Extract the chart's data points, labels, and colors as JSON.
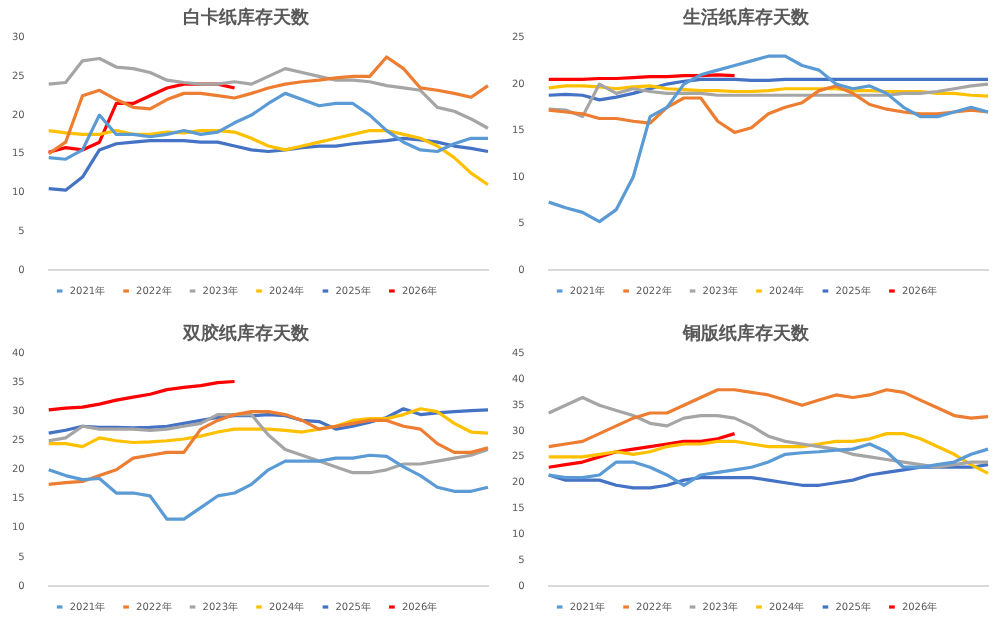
{
  "chart_data": [
    {
      "type": "line",
      "title": "白卡纸库存天数",
      "categories": [
        null,
        null,
        null,
        null,
        null,
        null,
        null,
        null,
        null,
        null,
        null,
        null,
        null,
        null,
        null,
        null,
        null,
        null,
        null,
        null,
        null,
        null,
        null,
        null,
        null,
        null,
        null
      ],
      "ylim": [
        0,
        30
      ],
      "yticks": [
        0,
        5,
        10,
        15,
        20,
        25,
        30
      ],
      "grid": false,
      "legend": "bottom",
      "marker": "none",
      "tick_labels": "y",
      "series": [
        {
          "name": "2021年",
          "color": "#5b9bd5",
          "values": [
            14.5,
            14.3,
            15.5,
            20,
            17.5,
            17.5,
            17.2,
            17.5,
            18,
            17.5,
            17.8,
            19,
            20,
            21.5,
            22.8,
            22,
            21.2,
            21.5,
            21.5,
            20,
            18,
            16.5,
            15.5,
            15.3,
            16.3,
            17,
            17
          ]
        },
        {
          "name": "2022年",
          "color": "#ed7d31",
          "values": [
            15,
            16.5,
            22.5,
            23.2,
            22,
            21,
            20.8,
            22,
            22.8,
            22.8,
            22.5,
            22.2,
            22.8,
            23.5,
            24,
            24.3,
            24.5,
            24.8,
            25,
            25,
            27.5,
            26,
            23.5,
            23.2,
            22.8,
            22.3,
            23.8
          ]
        },
        {
          "name": "2023年",
          "color": "#a5a5a5",
          "values": [
            24,
            24.2,
            27,
            27.3,
            26.2,
            26,
            25.5,
            24.5,
            24.2,
            24,
            24,
            24.3,
            24,
            25,
            26,
            25.5,
            25,
            24.5,
            24.5,
            24.3,
            23.8,
            23.5,
            23.2,
            21,
            20.5,
            19.5,
            18.3
          ]
        },
        {
          "name": "2024年",
          "color": "#ffc000",
          "values": [
            18,
            17.7,
            17.5,
            17.5,
            18,
            17.5,
            17.5,
            17.8,
            17.7,
            18,
            18,
            17.8,
            17,
            16,
            15.5,
            16,
            16.5,
            17,
            17.5,
            18,
            18,
            17.5,
            17,
            16,
            14.5,
            12.5,
            11
          ]
        },
        {
          "name": "2025年",
          "color": "#4472c4",
          "values": [
            10.5,
            10.3,
            12,
            15.5,
            16.3,
            16.5,
            16.7,
            16.7,
            16.7,
            16.5,
            16.5,
            16,
            15.5,
            15.3,
            15.5,
            15.8,
            16,
            16,
            16.3,
            16.5,
            16.7,
            17,
            16.8,
            16.5,
            16,
            15.7,
            15.3
          ]
        },
        {
          "name": "2026年",
          "color": "#ff0000",
          "values": [
            15.2,
            15.8,
            15.5,
            16.5,
            21.5,
            21.5,
            22.5,
            23.5,
            24,
            24,
            24,
            23.5,
            null,
            null,
            null,
            null,
            null,
            null,
            null,
            null,
            null,
            null,
            null,
            null,
            null,
            null,
            null
          ]
        }
      ]
    },
    {
      "type": "line",
      "title": "生活纸库存天数",
      "categories": [
        null,
        null,
        null,
        null,
        null,
        null,
        null,
        null,
        null,
        null,
        null,
        null,
        null,
        null,
        null,
        null,
        null,
        null,
        null,
        null,
        null,
        null,
        null,
        null,
        null,
        null,
        null
      ],
      "ylim": [
        0,
        25
      ],
      "yticks": [
        0,
        5,
        10,
        15,
        20,
        25
      ],
      "grid": false,
      "legend": "bottom",
      "marker": "none",
      "tick_labels": "y",
      "series": [
        {
          "name": "2021年",
          "color": "#5b9bd5",
          "values": [
            7.3,
            6.7,
            6.2,
            5.2,
            6.5,
            10,
            16.5,
            17.5,
            20,
            21,
            21.5,
            22,
            22.5,
            23,
            23,
            22,
            21.5,
            20,
            19.5,
            19.8,
            19,
            17.5,
            16.5,
            16.5,
            17,
            17.5,
            17
          ]
        },
        {
          "name": "2022年",
          "color": "#ed7d31",
          "values": [
            17.2,
            17,
            16.8,
            16.3,
            16.3,
            16,
            15.8,
            17.5,
            18.5,
            18.5,
            16,
            14.8,
            15.3,
            16.8,
            17.5,
            18,
            19.3,
            19.8,
            19,
            17.8,
            17.3,
            17,
            16.8,
            16.8,
            17,
            17.2,
            17
          ]
        },
        {
          "name": "2023年",
          "color": "#a5a5a5",
          "values": [
            17.3,
            17.2,
            16.5,
            20,
            19,
            19.5,
            19.2,
            19,
            19,
            19,
            18.8,
            18.8,
            18.8,
            18.8,
            18.8,
            18.8,
            18.8,
            18.8,
            18.8,
            18.8,
            18.8,
            19,
            19,
            19.2,
            19.5,
            19.8,
            20
          ]
        },
        {
          "name": "2024年",
          "color": "#ffc000",
          "values": [
            19.6,
            19.8,
            19.8,
            19.7,
            19.5,
            19.7,
            19.8,
            19.5,
            19.4,
            19.3,
            19.3,
            19.2,
            19.2,
            19.3,
            19.5,
            19.5,
            19.5,
            19.5,
            19.3,
            19.3,
            19.2,
            19.2,
            19.2,
            19,
            19,
            18.8,
            18.7
          ]
        },
        {
          "name": "2025年",
          "color": "#4472c4",
          "values": [
            18.8,
            18.9,
            18.8,
            18.3,
            18.6,
            19,
            19.5,
            20,
            20.3,
            20.5,
            20.5,
            20.5,
            20.4,
            20.4,
            20.5,
            20.5,
            20.5,
            20.5,
            20.5,
            20.5,
            20.5,
            20.5,
            20.5,
            20.5,
            20.5,
            20.5,
            20.5
          ]
        },
        {
          "name": "2026年",
          "color": "#ff0000",
          "values": [
            20.5,
            20.5,
            20.5,
            20.6,
            20.6,
            20.7,
            20.8,
            20.8,
            20.9,
            20.9,
            21,
            20.9,
            null,
            null,
            null,
            null,
            null,
            null,
            null,
            null,
            null,
            null,
            null,
            null,
            null,
            null,
            null
          ]
        }
      ]
    },
    {
      "type": "line",
      "title": "双胶纸库存天数",
      "categories": [
        null,
        null,
        null,
        null,
        null,
        null,
        null,
        null,
        null,
        null,
        null,
        null,
        null,
        null,
        null,
        null,
        null,
        null,
        null,
        null,
        null,
        null,
        null,
        null,
        null,
        null,
        null
      ],
      "ylim": [
        0,
        40
      ],
      "yticks": [
        0,
        5,
        10,
        15,
        20,
        25,
        30,
        35,
        40
      ],
      "grid": false,
      "legend": "bottom",
      "marker": "none",
      "tick_labels": "y",
      "series": [
        {
          "name": "2021年",
          "color": "#5b9bd5",
          "values": [
            20,
            19,
            18.3,
            18.5,
            16,
            16,
            15.5,
            11.5,
            11.5,
            13.5,
            15.5,
            16,
            17.5,
            20,
            21.5,
            21.5,
            21.5,
            22,
            22,
            22.5,
            22.3,
            20.5,
            19,
            17,
            16.3,
            16.3,
            17
          ]
        },
        {
          "name": "2022年",
          "color": "#ed7d31",
          "values": [
            17.5,
            17.8,
            18,
            19,
            20,
            22,
            22.5,
            23,
            23,
            27,
            28.5,
            29.5,
            30,
            30,
            29.5,
            28.5,
            27,
            27.5,
            28,
            28.5,
            28.5,
            27.5,
            27,
            24.5,
            23,
            23,
            23.8
          ]
        },
        {
          "name": "2023年",
          "color": "#a5a5a5",
          "values": [
            25,
            25.5,
            27.5,
            27,
            27,
            27,
            26.8,
            27,
            27.5,
            28,
            29.5,
            29.5,
            29.5,
            26,
            23.5,
            22.5,
            21.5,
            20.5,
            19.5,
            19.5,
            20,
            21,
            21,
            21.5,
            22,
            22.5,
            23.5
          ]
        },
        {
          "name": "2024年",
          "color": "#ffc000",
          "values": [
            24.5,
            24.5,
            24,
            25.5,
            25,
            24.7,
            24.8,
            25,
            25.3,
            25.8,
            26.5,
            27,
            27,
            27,
            26.8,
            26.5,
            27,
            27.5,
            28.5,
            28.8,
            28.8,
            29.5,
            30.5,
            30,
            28,
            26.5,
            26.3
          ]
        },
        {
          "name": "2025年",
          "color": "#4472c4",
          "values": [
            26.3,
            26.8,
            27.5,
            27.3,
            27.3,
            27.2,
            27.3,
            27.5,
            28,
            28.5,
            29,
            29.3,
            29.3,
            29.5,
            29.3,
            28.5,
            28.3,
            27,
            27.5,
            28.2,
            29,
            30.5,
            29.5,
            29.8,
            30,
            30.2,
            30.3
          ]
        },
        {
          "name": "2026年",
          "color": "#ff0000",
          "values": [
            30.3,
            30.6,
            30.8,
            31.3,
            32,
            32.5,
            33,
            33.8,
            34.2,
            34.5,
            35,
            35.2,
            null,
            null,
            null,
            null,
            null,
            null,
            null,
            null,
            null,
            null,
            null,
            null,
            null,
            null,
            null
          ]
        }
      ]
    },
    {
      "type": "line",
      "title": "铜版纸库存天数",
      "categories": [
        null,
        null,
        null,
        null,
        null,
        null,
        null,
        null,
        null,
        null,
        null,
        null,
        null,
        null,
        null,
        null,
        null,
        null,
        null,
        null,
        null,
        null,
        null,
        null,
        null,
        null,
        null
      ],
      "ylim": [
        0,
        45
      ],
      "yticks": [
        0,
        5,
        10,
        15,
        20,
        25,
        30,
        35,
        40,
        45
      ],
      "grid": false,
      "legend": "bottom",
      "marker": "none",
      "tick_labels": "y",
      "series": [
        {
          "name": "2021年",
          "color": "#5b9bd5",
          "values": [
            21.5,
            21,
            21,
            21.5,
            24,
            24,
            23,
            21.5,
            19.5,
            21.5,
            22,
            22.5,
            23,
            24,
            25.5,
            25.8,
            26,
            26.3,
            26.5,
            27.5,
            26,
            23,
            23,
            23.5,
            24,
            25.5,
            26.5
          ]
        },
        {
          "name": "2022年",
          "color": "#ed7d31",
          "values": [
            27,
            27.5,
            28,
            29.5,
            31,
            32.5,
            33.5,
            33.5,
            35,
            36.5,
            38,
            38,
            37.5,
            37,
            36,
            35,
            36,
            37,
            36.5,
            37,
            38,
            37.5,
            36,
            34.5,
            33,
            32.5,
            32.8
          ]
        },
        {
          "name": "2023年",
          "color": "#a5a5a5",
          "values": [
            33.5,
            35,
            36.5,
            35,
            34,
            33,
            31.5,
            31,
            32.5,
            33,
            33,
            32.5,
            31,
            29,
            28,
            27.5,
            27,
            26.5,
            25.5,
            25,
            24.5,
            24,
            23.5,
            23,
            23.5,
            24,
            24
          ]
        },
        {
          "name": "2024年",
          "color": "#ffc000",
          "values": [
            25,
            25,
            25,
            25.5,
            26,
            25.5,
            26,
            27,
            27.5,
            27.5,
            28,
            28,
            27.5,
            27,
            27,
            27,
            27.5,
            28,
            28,
            28.5,
            29.5,
            29.5,
            28.5,
            27,
            25.5,
            23.5,
            21.8
          ]
        },
        {
          "name": "2025年",
          "color": "#4472c4",
          "values": [
            21.5,
            20.5,
            20.5,
            20.5,
            19.5,
            19,
            19,
            19.5,
            20.5,
            21,
            21,
            21,
            21,
            20.5,
            20,
            19.5,
            19.5,
            20,
            20.5,
            21.5,
            22,
            22.5,
            23,
            23,
            23,
            23,
            23.5
          ]
        },
        {
          "name": "2026年",
          "color": "#ff0000",
          "values": [
            23,
            23.5,
            24,
            25,
            26,
            26.5,
            27,
            27.5,
            28,
            28,
            28.5,
            29.5,
            null,
            null,
            null,
            null,
            null,
            null,
            null,
            null,
            null,
            null,
            null,
            null,
            null,
            null,
            null
          ]
        }
      ]
    }
  ]
}
